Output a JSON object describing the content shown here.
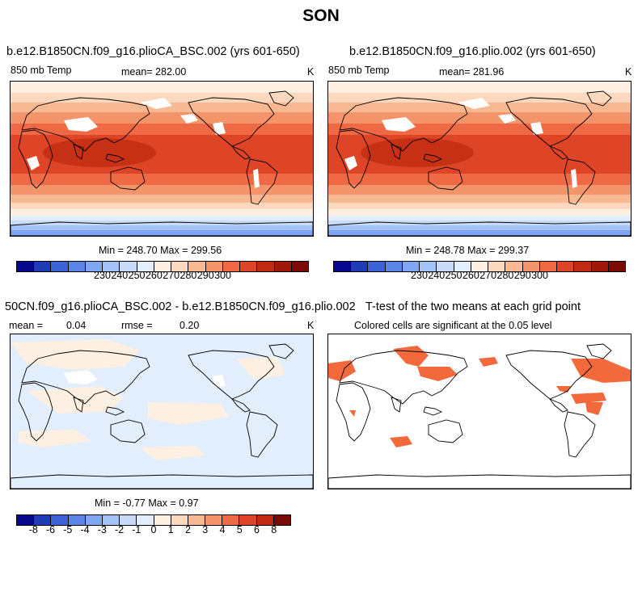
{
  "figure_title": "SON",
  "panels": {
    "a": {
      "title": "b.e12.B1850CN.f09_g16.plioCA_BSC.002 (yrs 601-650)",
      "left_label": "850 mb Temp",
      "center_label": "mean= 282.00",
      "units": "K",
      "stats": "Min = 248.70 Max = 299.56"
    },
    "b": {
      "title": "b.e12.B1850CN.f09_g16.plio.002 (yrs 601-650)",
      "left_label": "850 mb Temp",
      "center_label": "mean= 281.96",
      "units": "K",
      "stats": "Min = 248.78 Max = 299.37"
    },
    "c": {
      "title": "50CN.f09_g16.plioCA_BSC.002 - b.e12.B1850CN.f09_g16.plio.002",
      "mean_label": "mean =",
      "mean_value": "0.04",
      "rmse_label": "rmse =",
      "rmse_value": "0.20",
      "units": "K",
      "stats": "Min =  -0.77 Max =   0.97"
    },
    "d": {
      "title": "T-test of the two means at each grid point",
      "subtitle": "Colored cells are significant at the 0.05 level",
      "significant_color": "#f26a3c"
    }
  },
  "colorbar_temp": {
    "colors": [
      "#08088f",
      "#1f3bb8",
      "#3b63d6",
      "#5c85e8",
      "#7ea6f2",
      "#a3c3f7",
      "#c8dcfa",
      "#e2eefc",
      "#fdf0e2",
      "#fbd8be",
      "#f8b992",
      "#f4946a",
      "#ef6a44",
      "#dd4526",
      "#c12a12",
      "#a0180a",
      "#7a0b04"
    ],
    "labels": [
      "230",
      "240",
      "250",
      "260",
      "270",
      "280",
      "290",
      "300"
    ]
  },
  "colorbar_diff": {
    "colors": [
      "#08088f",
      "#1f3bb8",
      "#3b63d6",
      "#5c85e8",
      "#7ea6f2",
      "#a3c3f7",
      "#c8dcfa",
      "#e2eefc",
      "#fdf0e2",
      "#fbd8be",
      "#f8b992",
      "#f4946a",
      "#ef6a44",
      "#dd4526",
      "#c12a12",
      "#7a0b04"
    ],
    "labels": [
      "-8",
      "-6",
      "-5",
      "-4",
      "-3",
      "-2",
      "-1",
      "0",
      "1",
      "2",
      "3",
      "4",
      "5",
      "6",
      "8"
    ]
  }
}
